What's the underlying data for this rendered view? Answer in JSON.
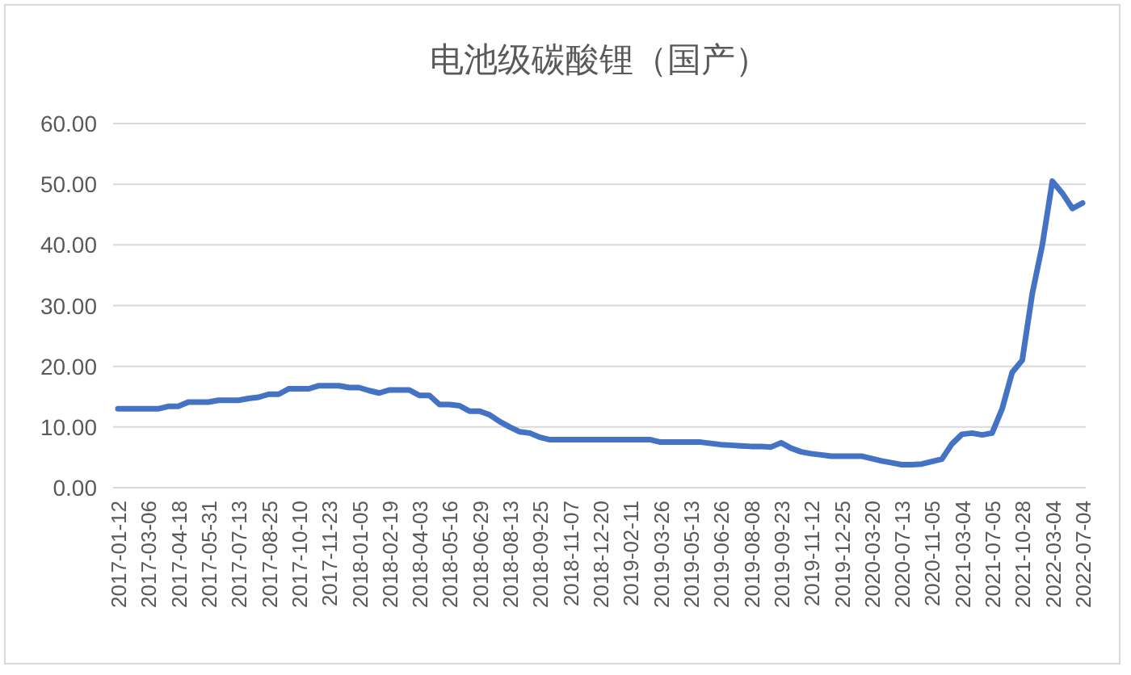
{
  "chart_data": {
    "type": "line",
    "title": "电池级碳酸锂（国产）",
    "categories": [
      "2017-01-12",
      null,
      null,
      "2017-03-06",
      null,
      null,
      "2017-04-18",
      null,
      null,
      "2017-05-31",
      null,
      null,
      "2017-07-13",
      null,
      null,
      "2017-08-25",
      null,
      null,
      "2017-10-10",
      null,
      null,
      "2017-11-23",
      null,
      null,
      "2018-01-05",
      null,
      null,
      "2018-02-19",
      null,
      null,
      "2018-04-03",
      null,
      null,
      "2018-05-16",
      null,
      null,
      "2018-06-29",
      null,
      null,
      "2018-08-13",
      null,
      null,
      "2018-09-25",
      null,
      null,
      "2018-11-07",
      null,
      null,
      "2018-12-20",
      null,
      null,
      "2019-02-11",
      null,
      null,
      "2019-03-26",
      null,
      null,
      "2019-05-13",
      null,
      null,
      "2019-06-26",
      null,
      null,
      "2019-08-08",
      null,
      null,
      "2019-09-23",
      null,
      null,
      "2019-11-12",
      null,
      null,
      "2019-12-25",
      null,
      null,
      "2020-03-20",
      null,
      null,
      "2020-07-13",
      null,
      null,
      "2020-11-05",
      null,
      null,
      "2021-03-04",
      null,
      null,
      "2021-07-05",
      null,
      null,
      "2021-10-28",
      null,
      null,
      "2022-03-04",
      null,
      null,
      "2022-07-04"
    ],
    "series": [
      {
        "color": "#4472c4",
        "values": [
          13.0,
          13.0,
          13.0,
          13.0,
          13.0,
          13.4,
          13.4,
          14.1,
          14.1,
          14.1,
          14.4,
          14.4,
          14.4,
          14.7,
          14.9,
          15.4,
          15.4,
          16.3,
          16.3,
          16.3,
          16.8,
          16.8,
          16.8,
          16.5,
          16.5,
          16.0,
          15.6,
          16.1,
          16.1,
          16.1,
          15.2,
          15.2,
          13.7,
          13.7,
          13.5,
          12.6,
          12.6,
          12.0,
          10.9,
          10.0,
          9.2,
          9.0,
          8.3,
          7.9,
          7.9,
          7.9,
          7.9,
          7.9,
          7.9,
          7.9,
          7.9,
          7.9,
          7.9,
          7.9,
          7.5,
          7.5,
          7.5,
          7.5,
          7.5,
          7.3,
          7.1,
          7.0,
          6.9,
          6.8,
          6.8,
          6.7,
          7.4,
          6.5,
          5.9,
          5.6,
          5.4,
          5.2,
          5.2,
          5.2,
          5.2,
          4.8,
          4.4,
          4.1,
          3.8,
          3.8,
          3.9,
          4.3,
          4.7,
          7.2,
          8.8,
          9.0,
          8.7,
          9.0,
          13.0,
          19.0,
          21.0,
          32.0,
          40.0,
          50.5,
          48.5,
          46.0,
          46.9
        ]
      }
    ],
    "ylim": [
      0,
      60
    ],
    "yticks": [
      {
        "value": 0,
        "label": "0.00"
      },
      {
        "value": 10,
        "label": "10.00"
      },
      {
        "value": 20,
        "label": "20.00"
      },
      {
        "value": 30,
        "label": "30.00"
      },
      {
        "value": 40,
        "label": "40.00"
      },
      {
        "value": 50,
        "label": "50.00"
      },
      {
        "value": 60,
        "label": "60.00"
      }
    ],
    "grid": "y",
    "marker": "none",
    "line_style": "solid"
  }
}
